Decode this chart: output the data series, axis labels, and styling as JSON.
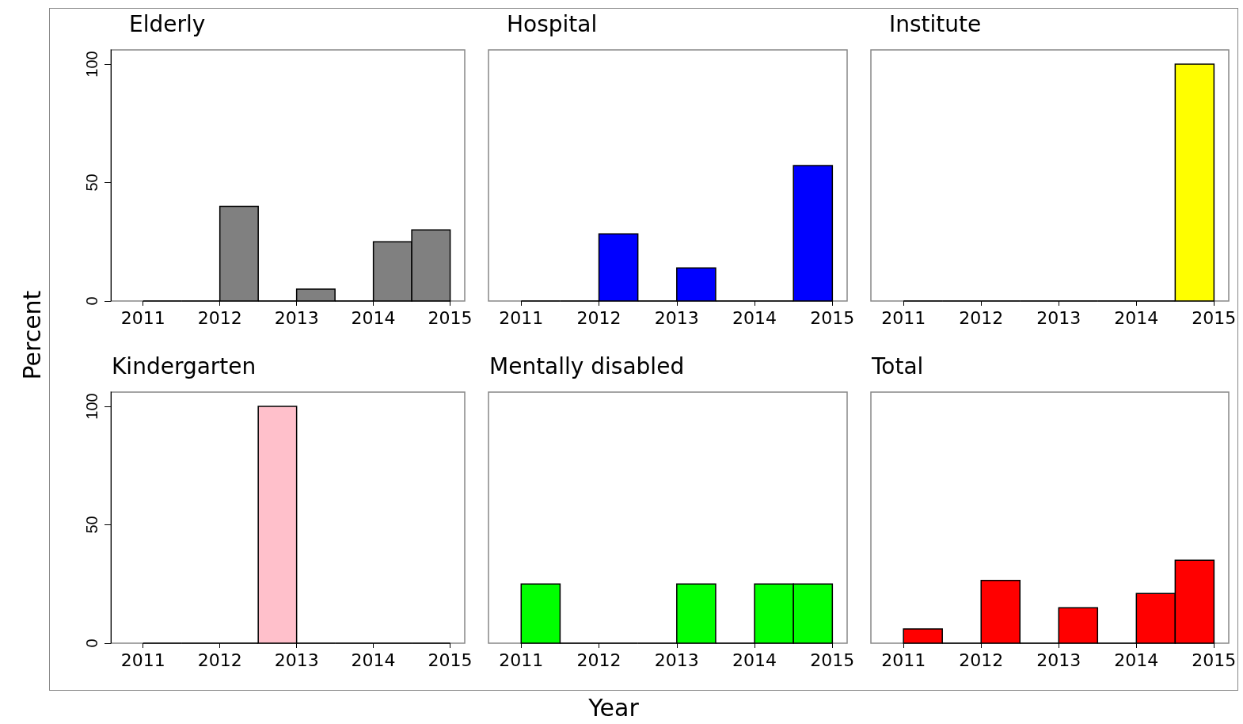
{
  "chart_data": [
    {
      "type": "histogram",
      "title": "Elderly",
      "bins": [
        2011,
        2011.5,
        2012,
        2012.5,
        2013,
        2013.5,
        2014,
        2014.5,
        2015
      ],
      "values": [
        0,
        0,
        40,
        0,
        5,
        0,
        25,
        30
      ],
      "color": "#808080",
      "xlim": [
        2010.58,
        2015.19
      ],
      "xticks": [
        2011,
        2012,
        2013,
        2014,
        2015
      ],
      "ylim": [
        0,
        106
      ],
      "yticks": [
        0,
        50,
        100
      ],
      "grid": false
    },
    {
      "type": "histogram",
      "title": "Hospital",
      "bins": [
        2011,
        2011.5,
        2012,
        2012.5,
        2013,
        2013.5,
        2014,
        2014.5,
        2015
      ],
      "values": [
        0,
        0,
        28.3,
        0,
        14,
        0,
        0,
        57.2
      ],
      "color": "#0000ff",
      "xlim": [
        2010.58,
        2015.19
      ],
      "xticks": [
        2011,
        2012,
        2013,
        2014,
        2015
      ],
      "ylim": [
        0,
        106
      ],
      "yticks": [
        0,
        50,
        100
      ],
      "grid": false,
      "tick_labels": "x"
    },
    {
      "type": "histogram",
      "title": "Institute",
      "bins": [
        2011,
        2011.5,
        2012,
        2012.5,
        2013,
        2013.5,
        2014,
        2014.5,
        2015
      ],
      "values": [
        0,
        0,
        0,
        0,
        0,
        0,
        0,
        100
      ],
      "color": "#ffff00",
      "xlim": [
        2010.58,
        2015.19
      ],
      "xticks": [
        2011,
        2012,
        2013,
        2014,
        2015
      ],
      "ylim": [
        0,
        106
      ],
      "yticks": [
        0,
        50,
        100
      ],
      "grid": false,
      "tick_labels": "x"
    },
    {
      "type": "histogram",
      "title": "Kindergarten",
      "ylabel": "Percent",
      "bins": [
        2011,
        2011.5,
        2012,
        2012.5,
        2013,
        2013.5,
        2014,
        2014.5,
        2015
      ],
      "values": [
        0,
        0,
        0,
        100,
        0,
        0,
        0,
        0
      ],
      "color": "#ffc0cb",
      "xlim": [
        2010.58,
        2015.19
      ],
      "xticks": [
        2011,
        2012,
        2013,
        2014,
        2015
      ],
      "ylim": [
        0,
        106
      ],
      "yticks": [
        0,
        50,
        100
      ],
      "grid": false
    },
    {
      "type": "histogram",
      "title": "Mentally disabled",
      "xlabel": "Year",
      "bins": [
        2011,
        2011.5,
        2012,
        2012.5,
        2013,
        2013.5,
        2014,
        2014.5,
        2015
      ],
      "values": [
        25,
        0,
        0,
        0,
        25,
        0,
        25,
        25
      ],
      "color": "#00ff00",
      "xlim": [
        2010.58,
        2015.19
      ],
      "xticks": [
        2011,
        2012,
        2013,
        2014,
        2015
      ],
      "ylim": [
        0,
        106
      ],
      "yticks": [
        0,
        50,
        100
      ],
      "grid": false,
      "tick_labels": "x"
    },
    {
      "type": "histogram",
      "title": "Total",
      "bins": [
        2011,
        2011.5,
        2012,
        2012.5,
        2013,
        2013.5,
        2014,
        2014.5,
        2015
      ],
      "values": [
        6,
        0,
        26.5,
        0,
        15,
        0,
        21,
        35
      ],
      "color": "#ff0000",
      "xlim": [
        2010.58,
        2015.19
      ],
      "xticks": [
        2011,
        2012,
        2013,
        2014,
        2015
      ],
      "ylim": [
        0,
        106
      ],
      "yticks": [
        0,
        50,
        100
      ],
      "grid": false,
      "tick_labels": "x"
    }
  ]
}
